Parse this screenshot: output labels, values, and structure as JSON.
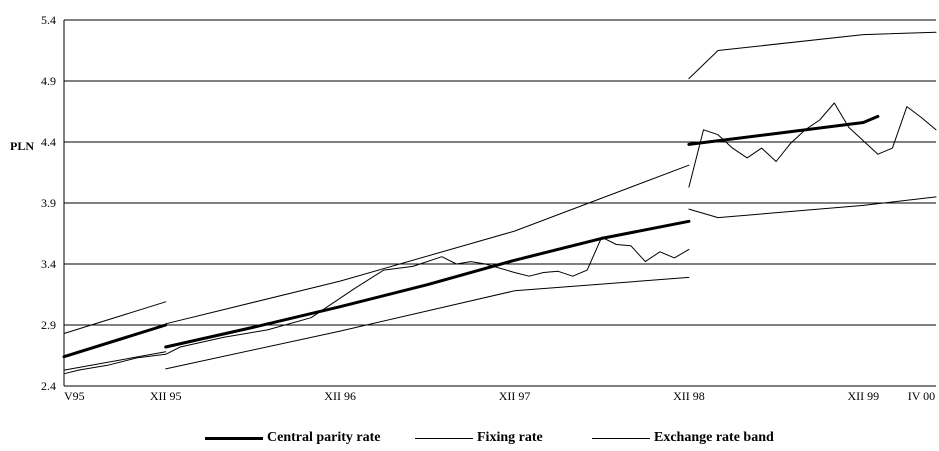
{
  "chart_data": {
    "type": "line",
    "title": "",
    "xlabel": "",
    "ylabel": "PLN",
    "ylim": [
      2.4,
      5.4
    ],
    "yticks": [
      "2.4",
      "2.9",
      "3.4",
      "3.9",
      "4.4",
      "4.9",
      "5.4"
    ],
    "x_tick_labels": [
      "V95",
      "XII 95",
      "XII 96",
      "XII 97",
      "XII 98",
      "XII 99",
      "IV 00"
    ],
    "x_tick_dates": [
      "1995-05",
      "1995-12",
      "1996-12",
      "1997-12",
      "1998-12",
      "1999-12",
      "2000-04"
    ],
    "grid": "horizontal",
    "legend_placement": "bottom",
    "series": [
      {
        "name": "Central parity rate",
        "style": "thick",
        "segments": [
          {
            "x": [
              "1995-05",
              "1995-12"
            ],
            "y": [
              2.64,
              2.9
            ]
          },
          {
            "x": [
              "1995-12",
              "1996-06",
              "1996-12",
              "1997-06",
              "1997-12",
              "1998-06",
              "1998-12"
            ],
            "y": [
              2.72,
              2.88,
              3.05,
              3.23,
              3.43,
              3.61,
              3.75
            ]
          },
          {
            "x": [
              "1998-12",
              "1999-06",
              "1999-12",
              "2000-01"
            ],
            "y": [
              4.38,
              4.47,
              4.56,
              4.61
            ]
          }
        ]
      },
      {
        "name": "Fixing rate",
        "style": "thin",
        "segments": [
          {
            "x": [
              "1995-05",
              "1995-06",
              "1995-08",
              "1995-10",
              "1995-12",
              "1996-01",
              "1996-04",
              "1996-07",
              "1996-10",
              "1997-01",
              "1997-03",
              "1997-05",
              "1997-07",
              "1997-08",
              "1997-09",
              "1997-10",
              "1997-12",
              "1998-01",
              "1998-02",
              "1998-03",
              "1998-04",
              "1998-05",
              "1998-06",
              "1998-07",
              "1998-08",
              "1998-09",
              "1998-10",
              "1998-11",
              "1998-12"
            ],
            "y": [
              2.5,
              2.53,
              2.57,
              2.63,
              2.66,
              2.72,
              2.8,
              2.86,
              2.96,
              3.2,
              3.35,
              3.38,
              3.46,
              3.4,
              3.42,
              3.4,
              3.33,
              3.3,
              3.33,
              3.34,
              3.3,
              3.35,
              3.62,
              3.56,
              3.55,
              3.42,
              3.5,
              3.45,
              3.52
            ]
          },
          {
            "x": [
              "1998-12",
              "1999-01",
              "1999-02",
              "1999-03",
              "1999-04",
              "1999-05",
              "1999-06",
              "1999-07",
              "1999-08",
              "1999-09",
              "1999-10",
              "1999-11",
              "1999-12",
              "2000-01",
              "2000-02",
              "2000-03",
              "2000-04",
              "2000-05"
            ],
            "y": [
              4.03,
              4.5,
              4.46,
              4.35,
              4.27,
              4.35,
              4.24,
              4.39,
              4.5,
              4.58,
              4.72,
              4.52,
              4.41,
              4.3,
              4.35,
              4.69,
              4.6,
              4.5
            ]
          }
        ]
      },
      {
        "name": "Exchange rate band",
        "style": "thin",
        "segments": [
          {
            "x": [
              "1995-05",
              "1995-12"
            ],
            "y": [
              2.83,
              3.09
            ]
          },
          {
            "x": [
              "1995-12",
              "1996-12",
              "1997-12",
              "1998-12"
            ],
            "y": [
              2.91,
              3.26,
              3.67,
              4.21
            ]
          },
          {
            "x": [
              "1998-12",
              "1999-02",
              "1999-12",
              "2000-05"
            ],
            "y": [
              4.92,
              5.15,
              5.28,
              5.3
            ]
          },
          {
            "x": [
              "1995-05",
              "1995-12"
            ],
            "y": [
              2.53,
              2.68
            ]
          },
          {
            "x": [
              "1995-12",
              "1996-12",
              "1997-12",
              "1998-12"
            ],
            "y": [
              2.54,
              2.85,
              3.18,
              3.29
            ]
          },
          {
            "x": [
              "1998-12",
              "1999-02",
              "1999-12",
              "2000-05"
            ],
            "y": [
              3.85,
              3.78,
              3.88,
              3.95
            ]
          }
        ]
      }
    ]
  }
}
